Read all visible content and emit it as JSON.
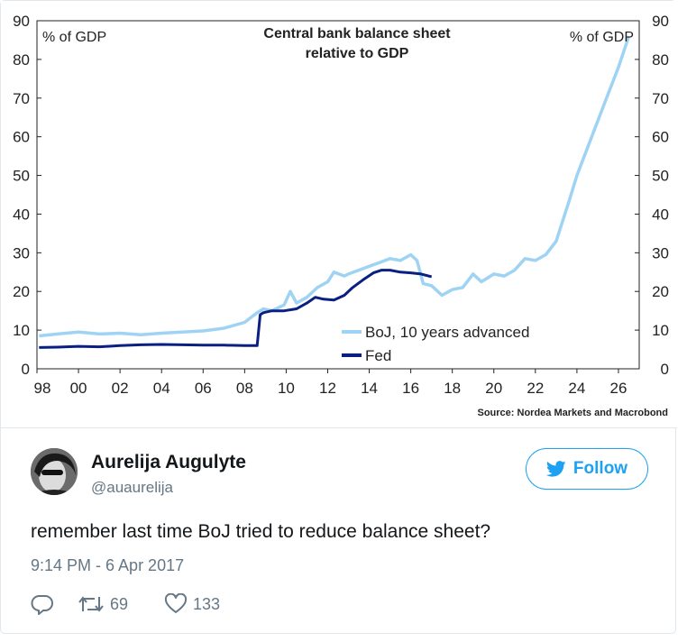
{
  "chart_data": {
    "type": "line",
    "title": "Central bank balance sheet relative to GDP",
    "ylabel_left": "% of GDP",
    "ylabel_right": "% of GDP",
    "ylim": [
      0,
      90
    ],
    "xlim": [
      1998,
      2027
    ],
    "y_ticks": [
      "0",
      "10",
      "20",
      "30",
      "40",
      "50",
      "60",
      "70",
      "80",
      "90"
    ],
    "x_ticks": [
      "98",
      "00",
      "02",
      "04",
      "06",
      "08",
      "10",
      "12",
      "14",
      "16",
      "18",
      "20",
      "22",
      "24",
      "26"
    ],
    "grid": false,
    "legend_position": "center-right",
    "source": "Source: Nordea Markets and Macrobond",
    "series": [
      {
        "name": "BoJ, 10 years advanced",
        "color": "#9fd3f4",
        "x": [
          1998.1,
          1999,
          2000,
          2001,
          2002,
          2003,
          2004,
          2005,
          2006,
          2007,
          2008,
          2008.6,
          2008.9,
          2009.3,
          2009.9,
          2010.2,
          2010.5,
          2011,
          2011.5,
          2012,
          2012.3,
          2012.8,
          2013,
          2013.5,
          2014,
          2014.5,
          2015,
          2015.5,
          2016,
          2016.3,
          2016.6,
          2017,
          2017.5,
          2018,
          2018.5,
          2019,
          2019.4,
          2020,
          2020.5,
          2021,
          2021.5,
          2022,
          2022.5,
          2023,
          2023.3,
          2023.6,
          2024,
          2024.5,
          2025,
          2025.5,
          2026,
          2026.5
        ],
        "values": [
          8.5,
          9,
          9.5,
          9,
          9.2,
          8.8,
          9.2,
          9.5,
          9.8,
          10.5,
          12,
          14.5,
          15.5,
          15,
          16.5,
          20,
          17,
          18.5,
          21,
          22.5,
          25,
          24,
          24.5,
          25.5,
          26.5,
          27.5,
          28.5,
          28,
          29.5,
          28,
          22,
          21.5,
          19,
          20.5,
          21,
          24.5,
          22.5,
          24.5,
          24,
          25.5,
          28.5,
          28,
          29.5,
          33,
          38,
          43,
          50,
          57,
          64,
          71,
          78,
          86
        ]
      },
      {
        "name": "Fed",
        "color": "#0a1f82",
        "x": [
          1998.1,
          1999,
          2000,
          2001,
          2002,
          2003,
          2004,
          2005,
          2006,
          2007,
          2008,
          2008.6,
          2008.75,
          2008.9,
          2009.3,
          2009.9,
          2010.5,
          2011,
          2011.4,
          2011.8,
          2012.3,
          2012.8,
          2013.2,
          2013.7,
          2014.2,
          2014.6,
          2015,
          2015.5,
          2016,
          2016.5,
          2017
        ],
        "values": [
          5.5,
          5.6,
          5.8,
          5.7,
          6,
          6.2,
          6.3,
          6.2,
          6.1,
          6.1,
          6,
          6,
          14,
          14.5,
          15,
          15,
          15.5,
          17,
          18.5,
          18,
          17.8,
          19,
          21,
          23,
          24.8,
          25.5,
          25.5,
          25,
          24.8,
          24.5,
          23.8
        ]
      }
    ]
  },
  "tweet": {
    "author_name": "Aurelija Augulyte",
    "handle": "@auaurelija",
    "follow_label": "Follow",
    "text": "remember last time BoJ tried to reduce balance sheet?",
    "timestamp": "9:14 PM - 6 Apr 2017",
    "reply_count": "",
    "retweet_count": "69",
    "like_count": "133"
  },
  "colors": {
    "twitter_blue": "#1da1f2",
    "text_primary": "#14171a",
    "text_secondary": "#657786"
  }
}
